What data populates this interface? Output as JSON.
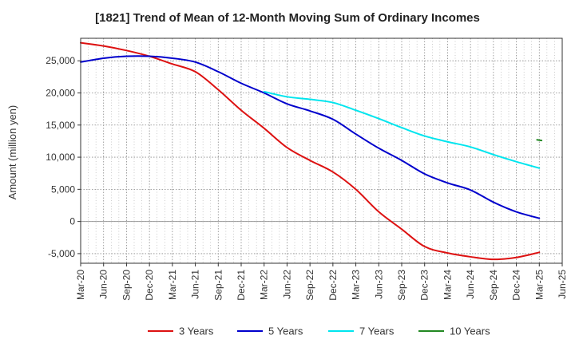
{
  "chart_data": {
    "type": "line",
    "title": "[1821]  Trend of Mean of 12-Month Moving Sum of Ordinary Incomes",
    "xlabel": "",
    "ylabel": "Amount (million yen)",
    "ylim": [
      -6500,
      28500
    ],
    "yticks": [
      -5000,
      0,
      5000,
      10000,
      15000,
      20000,
      25000
    ],
    "ytick_labels": [
      "-5,000",
      "0",
      "5,000",
      "10,000",
      "15,000",
      "20,000",
      "25,000"
    ],
    "x_range": [
      0,
      21
    ],
    "x_categories": [
      "Mar-20",
      "Jun-20",
      "Sep-20",
      "Dec-20",
      "Mar-21",
      "Jun-21",
      "Sep-21",
      "Dec-21",
      "Mar-22",
      "Jun-22",
      "Sep-22",
      "Dec-22",
      "Mar-23",
      "Jun-23",
      "Sep-23",
      "Dec-23",
      "Mar-24",
      "Jun-24",
      "Sep-24",
      "Dec-24",
      "Mar-25",
      "Jun-25"
    ],
    "grid": true,
    "legend_position": "bottom",
    "series": [
      {
        "name": "3 Years",
        "color": "#dd1111",
        "points": [
          [
            0,
            27800
          ],
          [
            1,
            27300
          ],
          [
            2,
            26600
          ],
          [
            3,
            25700
          ],
          [
            4,
            24500
          ],
          [
            5,
            23300
          ],
          [
            6,
            20500
          ],
          [
            7,
            17300
          ],
          [
            8,
            14500
          ],
          [
            9,
            11500
          ],
          [
            10,
            9500
          ],
          [
            11,
            7700
          ],
          [
            12,
            5000
          ],
          [
            13,
            1500
          ],
          [
            14,
            -1200
          ],
          [
            15,
            -3900
          ],
          [
            16,
            -4900
          ],
          [
            17,
            -5500
          ],
          [
            18,
            -5900
          ],
          [
            19,
            -5600
          ],
          [
            20,
            -4800
          ]
        ]
      },
      {
        "name": "5 Years",
        "color": "#0000cc",
        "points": [
          [
            0,
            24800
          ],
          [
            1,
            25400
          ],
          [
            2,
            25700
          ],
          [
            3,
            25700
          ],
          [
            4,
            25400
          ],
          [
            5,
            24800
          ],
          [
            6,
            23300
          ],
          [
            7,
            21500
          ],
          [
            8,
            20000
          ],
          [
            9,
            18300
          ],
          [
            10,
            17200
          ],
          [
            11,
            15900
          ],
          [
            12,
            13600
          ],
          [
            13,
            11400
          ],
          [
            14,
            9500
          ],
          [
            15,
            7400
          ],
          [
            16,
            6000
          ],
          [
            17,
            4900
          ],
          [
            18,
            3000
          ],
          [
            19,
            1500
          ],
          [
            20,
            500
          ]
        ]
      },
      {
        "name": "7 Years",
        "color": "#00e5ee",
        "points": [
          [
            8,
            20200
          ],
          [
            9,
            19400
          ],
          [
            10,
            19000
          ],
          [
            11,
            18500
          ],
          [
            12,
            17300
          ],
          [
            13,
            16000
          ],
          [
            14,
            14600
          ],
          [
            15,
            13300
          ],
          [
            16,
            12400
          ],
          [
            17,
            11600
          ],
          [
            18,
            10400
          ],
          [
            19,
            9300
          ],
          [
            20,
            8300
          ]
        ]
      },
      {
        "name": "10 Years",
        "color": "#228822",
        "points": [
          [
            19.9,
            12700
          ],
          [
            20.1,
            12600
          ]
        ]
      }
    ]
  }
}
